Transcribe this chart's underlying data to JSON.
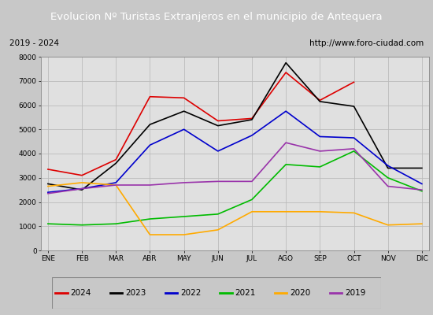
{
  "title": "Evolucion Nº Turistas Extranjeros en el municipio de Antequera",
  "subtitle_left": "2019 - 2024",
  "subtitle_right": "http://www.foro-ciudad.com",
  "title_bg_color": "#5080c0",
  "title_text_color": "#ffffff",
  "plot_bg_color": "#e8e8e8",
  "fig_bg_color": "#c8c8c8",
  "months": [
    "ENE",
    "FEB",
    "MAR",
    "ABR",
    "MAY",
    "JUN",
    "JUL",
    "AGO",
    "SEP",
    "OCT",
    "NOV",
    "DIC"
  ],
  "series": {
    "2024": {
      "color": "#dd0000",
      "data": [
        3350,
        3100,
        3750,
        6350,
        6300,
        5350,
        5450,
        7350,
        6200,
        6950,
        null,
        null
      ]
    },
    "2023": {
      "color": "#000000",
      "data": [
        2750,
        2500,
        3600,
        5200,
        5750,
        5150,
        5400,
        7750,
        6150,
        5950,
        3400,
        3400
      ]
    },
    "2022": {
      "color": "#0000cc",
      "data": [
        2400,
        2550,
        2800,
        4350,
        5000,
        4100,
        4750,
        5750,
        4700,
        4650,
        3500,
        2750
      ]
    },
    "2021": {
      "color": "#00bb00",
      "data": [
        1100,
        1050,
        1100,
        1300,
        1400,
        1500,
        2100,
        3550,
        3450,
        4100,
        3000,
        2450
      ]
    },
    "2020": {
      "color": "#ffaa00",
      "data": [
        2650,
        2800,
        2700,
        650,
        650,
        850,
        1600,
        1600,
        1600,
        1550,
        1050,
        1100
      ]
    },
    "2019": {
      "color": "#9933aa",
      "data": [
        2350,
        2550,
        2700,
        2700,
        2800,
        2850,
        2850,
        4450,
        4100,
        4200,
        2650,
        2500
      ]
    }
  },
  "ylim": [
    0,
    8000
  ],
  "yticks": [
    0,
    1000,
    2000,
    3000,
    4000,
    5000,
    6000,
    7000,
    8000
  ],
  "legend_order": [
    "2024",
    "2023",
    "2022",
    "2021",
    "2020",
    "2019"
  ]
}
